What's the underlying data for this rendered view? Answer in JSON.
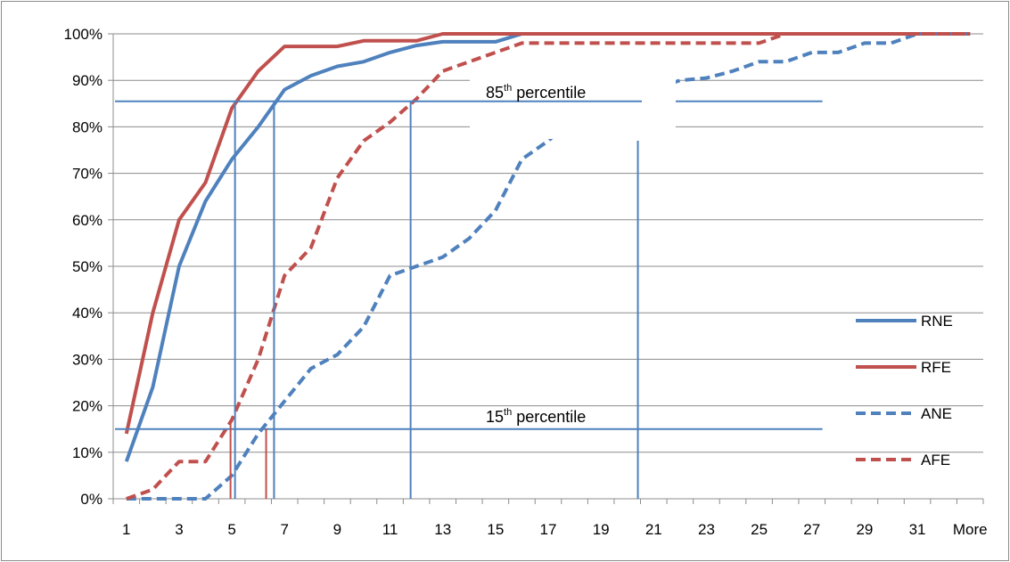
{
  "chart_data": {
    "type": "line",
    "categories": [
      "1",
      "2",
      "3",
      "4",
      "5",
      "6",
      "7",
      "8",
      "9",
      "10",
      "11",
      "12",
      "13",
      "14",
      "15",
      "16",
      "17",
      "18",
      "19",
      "20",
      "21",
      "22",
      "23",
      "24",
      "25",
      "26",
      "27",
      "28",
      "29",
      "30",
      "31",
      "32",
      "More"
    ],
    "x_tick_labels": [
      "1",
      "3",
      "5",
      "7",
      "9",
      "11",
      "13",
      "15",
      "17",
      "19",
      "21",
      "23",
      "25",
      "27",
      "29",
      "31",
      "More"
    ],
    "y_tick_labels": [
      "0%",
      "10%",
      "20%",
      "30%",
      "40%",
      "50%",
      "60%",
      "70%",
      "80%",
      "90%",
      "100%"
    ],
    "ylim": [
      0,
      100
    ],
    "grid": true,
    "legend_position": "right",
    "series": [
      {
        "name": "RNE",
        "color": "#4f81bd",
        "dash": "solid",
        "values": [
          8,
          24,
          50,
          64,
          73,
          80,
          88,
          91,
          93,
          94,
          96,
          97.5,
          98.3,
          98.3,
          98.3,
          100,
          100,
          100,
          100,
          100,
          100,
          100,
          100,
          100,
          100,
          100,
          100,
          100,
          100,
          100,
          100,
          100,
          100
        ]
      },
      {
        "name": "RFE",
        "color": "#c0504d",
        "dash": "solid",
        "values": [
          14,
          40,
          60,
          68,
          84,
          92,
          97.3,
          97.3,
          97.3,
          98.5,
          98.5,
          98.5,
          100,
          100,
          100,
          100,
          100,
          100,
          100,
          100,
          100,
          100,
          100,
          100,
          100,
          100,
          100,
          100,
          100,
          100,
          100,
          100,
          100
        ]
      },
      {
        "name": "ANE",
        "color": "#4f81bd",
        "dash": "dashed",
        "values": [
          0,
          0,
          0,
          0,
          5,
          14,
          21,
          28,
          31,
          37,
          48,
          50,
          52,
          56,
          62,
          73,
          77,
          82,
          85,
          87,
          88,
          90,
          90.5,
          92,
          94,
          94,
          96,
          96,
          98,
          98,
          100,
          100,
          100
        ]
      },
      {
        "name": "AFE",
        "color": "#c0504d",
        "dash": "dashed",
        "values": [
          0,
          2,
          8,
          8,
          17,
          30,
          48,
          54,
          69,
          77,
          81,
          86,
          92,
          94,
          96,
          98,
          98,
          98,
          98,
          98,
          98,
          98,
          98,
          98,
          98,
          100,
          100,
          100,
          100,
          100,
          100,
          100,
          100
        ]
      }
    ],
    "annotations": [
      {
        "base": "85",
        "sup": "th",
        "rest": " percentile",
        "y": 85.5
      },
      {
        "base": "15",
        "sup": "th",
        "rest": " percentile",
        "y": 15
      }
    ],
    "reference_lines": {
      "horizontal": [
        {
          "y": 85.5,
          "x_from": 1,
          "x_to": 27.4
        },
        {
          "y": 15,
          "x_from": 1,
          "x_to": 27.4
        }
      ],
      "vertical_blue": [
        {
          "x": 5.12,
          "y_top": 85.5
        },
        {
          "x": 6.6,
          "y_top": 85.5
        },
        {
          "x": 11.78,
          "y_top": 85.5
        },
        {
          "x": 20.4,
          "y_top": 77
        }
      ],
      "vertical_red": [
        {
          "x": 4.95,
          "y_top": 17
        },
        {
          "x": 6.3,
          "y_top": 15
        }
      ]
    }
  }
}
